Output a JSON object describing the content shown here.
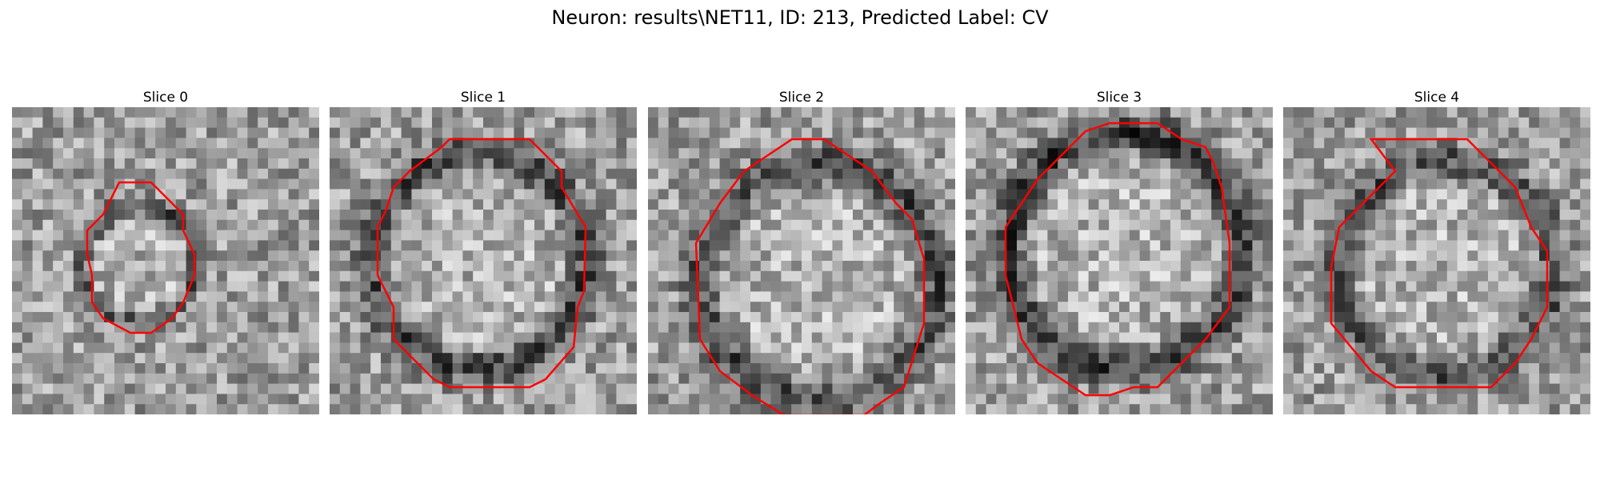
{
  "title": "Neuron: results\\NET11, ID: 213, Predicted Label: CV",
  "contour_color": "#ff0000",
  "panels": [
    {
      "title": "Slice 0",
      "seed": 11,
      "contrast": 0.55
    },
    {
      "title": "Slice 1",
      "seed": 23,
      "contrast": 0.6
    },
    {
      "title": "Slice 2",
      "seed": 37,
      "contrast": 0.6
    },
    {
      "title": "Slice 3",
      "seed": 41,
      "contrast": 0.7
    },
    {
      "title": "Slice 4",
      "seed": 53,
      "contrast": 0.55
    }
  ]
}
